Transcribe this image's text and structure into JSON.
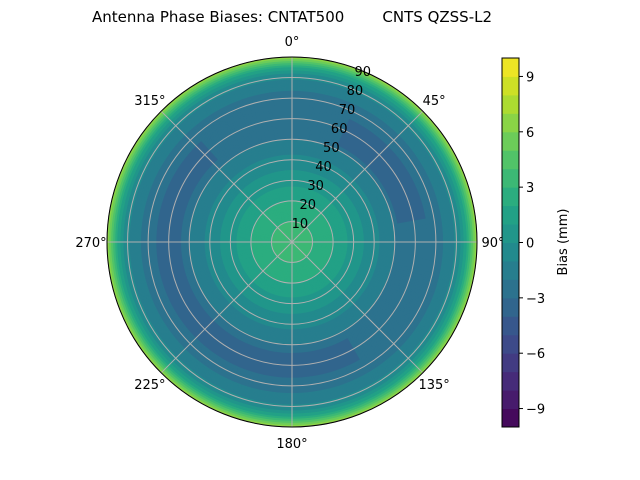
{
  "chart_data": {
    "type": "polar-contour",
    "title": "Antenna Phase Biases: CNTAT500        CNTS QZSS-L2",
    "theta_ticks": [
      "0°",
      "45°",
      "90°",
      "135°",
      "180°",
      "225°",
      "270°",
      "315°"
    ],
    "theta_direction": "clockwise",
    "theta_zero": "top",
    "r_ticks": [
      10,
      20,
      30,
      40,
      50,
      60,
      70,
      80,
      90
    ],
    "rlim": [
      0,
      90
    ],
    "grid": true,
    "colormap": "viridis",
    "levels": {
      "min": -10,
      "max": 10,
      "step": 1
    },
    "colorbar": {
      "label": "Bias (mm)",
      "ticks": [
        -9,
        -6,
        -3,
        0,
        3,
        6,
        9
      ]
    },
    "radial_profile": {
      "zenith": [
        0,
        10,
        15,
        20,
        25,
        30,
        35,
        40,
        45,
        50,
        55,
        60,
        65,
        70,
        75,
        80,
        83,
        85,
        87,
        89,
        90
      ],
      "bias": [
        3.5,
        3.0,
        2.5,
        2.0,
        1.3,
        0.6,
        0.0,
        -0.7,
        -1.3,
        -2.0,
        -2.5,
        -2.8,
        -2.8,
        -2.5,
        -1.8,
        -0.8,
        0.5,
        2.0,
        4.0,
        6.0,
        7.0
      ]
    },
    "anomalies": [
      {
        "azimuth": [
          25,
          80
        ],
        "zenith": [
          52,
          66
        ],
        "bias": -3.5
      },
      {
        "azimuth": [
          150,
          318
        ],
        "zenith": [
          54,
          66
        ],
        "bias": -3.5
      }
    ]
  }
}
